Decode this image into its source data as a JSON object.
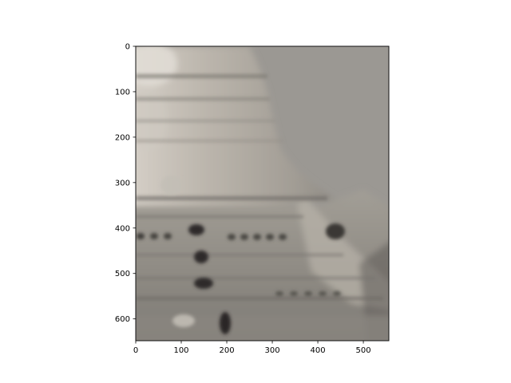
{
  "chart_data": {
    "type": "image",
    "title": "",
    "xlabel": "",
    "ylabel": "",
    "image": {
      "width": 556,
      "height": 648,
      "content": "blurry grayscale photograph of a pagoda / stupa against a grey sky",
      "colors": {
        "sky": "#9b9893",
        "dome_light": "#cfc9c1",
        "dome_mid": "#a9a49c",
        "body": "#8f8b84",
        "body_dark": "#6d6a65",
        "window": "#2e2b29",
        "border": "#111111"
      }
    },
    "xlim": [
      0,
      556
    ],
    "ylim": [
      648,
      0
    ],
    "x_ticks": [
      {
        "value": 0,
        "label": "0"
      },
      {
        "value": 100,
        "label": "100"
      },
      {
        "value": 200,
        "label": "200"
      },
      {
        "value": 300,
        "label": "300"
      },
      {
        "value": 400,
        "label": "400"
      },
      {
        "value": 500,
        "label": "500"
      }
    ],
    "y_ticks": [
      {
        "value": 0,
        "label": "0"
      },
      {
        "value": 100,
        "label": "100"
      },
      {
        "value": 200,
        "label": "200"
      },
      {
        "value": 300,
        "label": "300"
      },
      {
        "value": 400,
        "label": "400"
      },
      {
        "value": 500,
        "label": "500"
      },
      {
        "value": 600,
        "label": "600"
      }
    ],
    "grid": false,
    "legend": "none"
  }
}
